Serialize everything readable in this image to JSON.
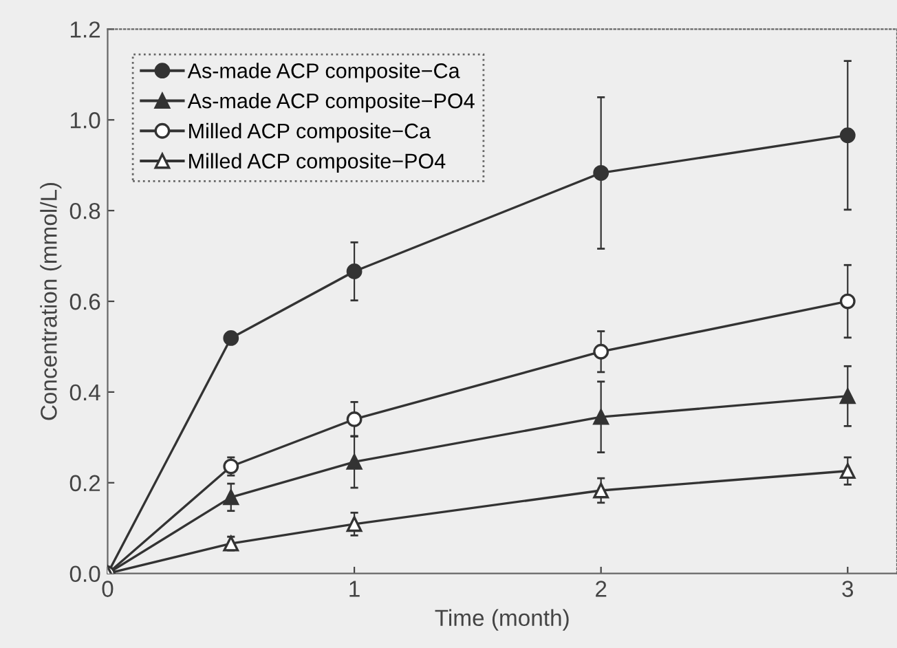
{
  "chart_data": {
    "type": "line",
    "xlabel": "Time (month)",
    "ylabel": "Concentration (mmol/L)",
    "xlim": [
      0,
      3.2
    ],
    "xticks": [
      0,
      1,
      2,
      3
    ],
    "ylim": [
      0,
      1.2
    ],
    "yticks": [
      {
        "value": 0,
        "label": "0.0"
      },
      0.2,
      0.4,
      0.6,
      0.8,
      {
        "value": 1,
        "label": "1.0"
      },
      1.2
    ],
    "grid": false,
    "legend": "top left",
    "line_style": "solid",
    "x": [
      0,
      0.5,
      1,
      2,
      3
    ],
    "series": [
      {
        "name": "As-made ACP composite−Ca",
        "color": "#333333",
        "marker": "circle",
        "values": [
          0,
          0.519,
          0.666,
          0.883,
          0.966
        ],
        "errors": [
          null,
          null,
          0.064,
          0.167,
          0.164
        ]
      },
      {
        "name": "As-made ACP composite−PO4",
        "color": "#333333",
        "marker": "triangle",
        "values": [
          0,
          0.168,
          0.246,
          0.345,
          0.391
        ],
        "errors": [
          null,
          0.03,
          0.057,
          0.078,
          0.066
        ]
      },
      {
        "name": "Milled ACP composite−Ca",
        "color": "#333333",
        "colors": [
          "#ffffff",
          "#ffffff",
          "#ffffff",
          "#ffffff",
          "#ffffff"
        ],
        "marker": "circle",
        "values": [
          0,
          0.236,
          0.34,
          0.489,
          0.6
        ],
        "errors": [
          null,
          0.02,
          0.038,
          0.045,
          0.08
        ]
      },
      {
        "name": "Milled ACP composite−PO4",
        "color": "#333333",
        "colors": [
          "#ffffff",
          "#ffffff",
          "#ffffff",
          "#ffffff",
          "#ffffff"
        ],
        "marker": "triangle",
        "values": [
          0,
          0.066,
          0.109,
          0.183,
          0.226
        ],
        "errors": [
          null,
          0.015,
          0.025,
          0.027,
          0.03
        ]
      }
    ]
  }
}
